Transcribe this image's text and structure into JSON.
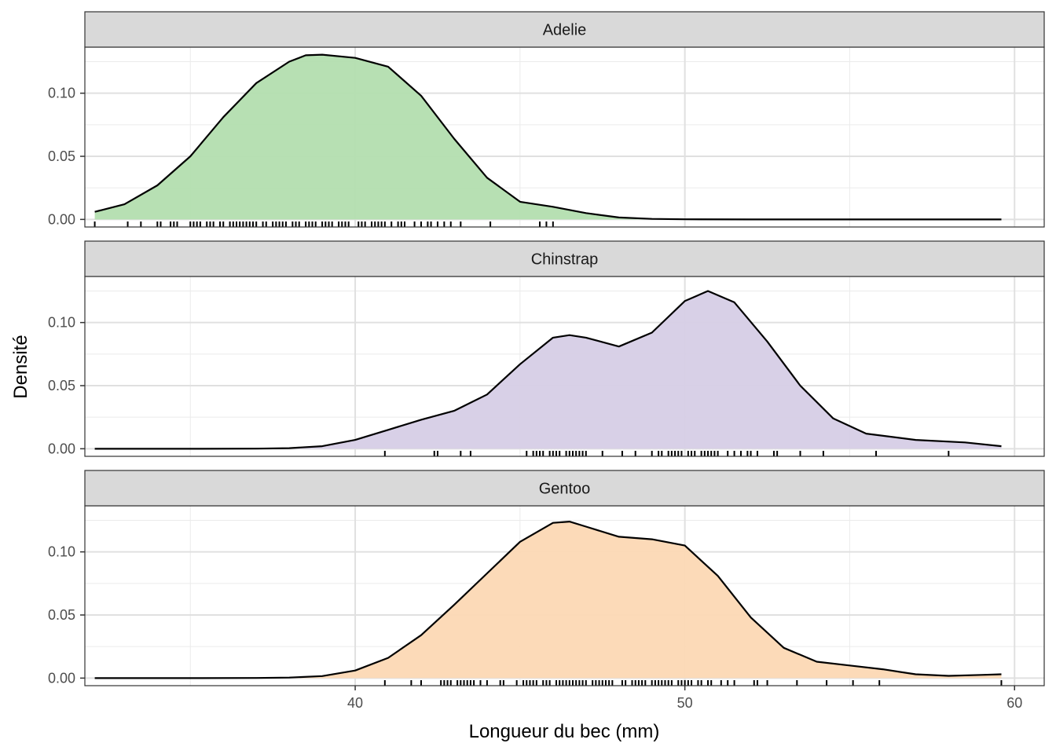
{
  "chart_data": {
    "type": "area",
    "xlabel": "Longueur du bec (mm)",
    "ylabel": "Densité",
    "xlim": [
      31.8,
      60.9
    ],
    "ylim": [
      -0.006,
      0.1365
    ],
    "x_ticks": [
      40,
      50,
      60
    ],
    "x_minor": [
      35,
      45,
      55
    ],
    "y_ticks": [
      0.0,
      0.05,
      0.1
    ],
    "y_tick_labels": [
      "0.00",
      "0.05",
      "0.10"
    ],
    "y_minor": [
      0.025,
      0.075,
      0.125
    ],
    "grid": true,
    "facets": [
      {
        "label": "Adelie",
        "fill": "#b3deaf",
        "curve": [
          [
            32.1,
            0.006
          ],
          [
            33.0,
            0.012
          ],
          [
            34.0,
            0.027
          ],
          [
            35.0,
            0.05
          ],
          [
            36.0,
            0.081
          ],
          [
            37.0,
            0.108
          ],
          [
            38.0,
            0.125
          ],
          [
            38.5,
            0.13
          ],
          [
            39.0,
            0.1305
          ],
          [
            40.0,
            0.128
          ],
          [
            41.0,
            0.121
          ],
          [
            42.0,
            0.098
          ],
          [
            43.0,
            0.064
          ],
          [
            44.0,
            0.033
          ],
          [
            45.0,
            0.014
          ],
          [
            46.0,
            0.01
          ],
          [
            47.0,
            0.005
          ],
          [
            48.0,
            0.0015
          ],
          [
            49.0,
            0.0004
          ],
          [
            50.0,
            0.0001
          ],
          [
            52.0,
            0.0
          ],
          [
            55.0,
            0.0
          ],
          [
            59.6,
            0.0
          ]
        ],
        "rug": [
          32.1,
          33.1,
          33.5,
          34.0,
          34.1,
          34.4,
          34.5,
          34.6,
          35.0,
          35.1,
          35.2,
          35.3,
          35.5,
          35.6,
          35.7,
          35.9,
          36.0,
          36.2,
          36.3,
          36.4,
          36.5,
          36.6,
          36.7,
          36.8,
          36.9,
          37.0,
          37.2,
          37.3,
          37.5,
          37.6,
          37.7,
          37.8,
          37.9,
          38.1,
          38.2,
          38.3,
          38.5,
          38.6,
          38.7,
          38.8,
          39.0,
          39.1,
          39.2,
          39.3,
          39.5,
          39.6,
          39.7,
          39.8,
          40.1,
          40.2,
          40.3,
          40.5,
          40.6,
          40.7,
          40.8,
          40.9,
          41.1,
          41.3,
          41.4,
          41.5,
          41.8,
          42.0,
          42.2,
          42.3,
          42.5,
          42.7,
          42.9,
          43.2,
          44.1,
          45.6,
          45.8,
          46.0
        ]
      },
      {
        "label": "Chinstrap",
        "fill": "#d6cde6",
        "curve": [
          [
            32.1,
            0.0
          ],
          [
            35.0,
            0.0
          ],
          [
            37.0,
            0.0001
          ],
          [
            38.0,
            0.0005
          ],
          [
            39.0,
            0.002
          ],
          [
            40.0,
            0.007
          ],
          [
            41.0,
            0.015
          ],
          [
            42.0,
            0.023
          ],
          [
            43.0,
            0.03
          ],
          [
            44.0,
            0.043
          ],
          [
            45.0,
            0.067
          ],
          [
            46.0,
            0.088
          ],
          [
            46.5,
            0.09
          ],
          [
            47.0,
            0.088
          ],
          [
            48.0,
            0.081
          ],
          [
            49.0,
            0.092
          ],
          [
            50.0,
            0.117
          ],
          [
            50.7,
            0.125
          ],
          [
            51.5,
            0.116
          ],
          [
            52.5,
            0.085
          ],
          [
            53.5,
            0.05
          ],
          [
            54.5,
            0.024
          ],
          [
            55.5,
            0.012
          ],
          [
            57.0,
            0.007
          ],
          [
            58.5,
            0.005
          ],
          [
            59.6,
            0.002
          ]
        ],
        "rug": [
          40.9,
          42.4,
          42.5,
          43.2,
          43.5,
          45.2,
          45.4,
          45.5,
          45.6,
          45.7,
          45.9,
          46.0,
          46.1,
          46.2,
          46.4,
          46.5,
          46.6,
          46.7,
          46.8,
          46.9,
          47.0,
          47.5,
          48.1,
          48.5,
          49.0,
          49.2,
          49.3,
          49.5,
          49.6,
          49.7,
          49.8,
          49.9,
          50.1,
          50.2,
          50.3,
          50.5,
          50.6,
          50.7,
          50.8,
          50.9,
          51.0,
          51.3,
          51.5,
          51.7,
          51.9,
          52.0,
          52.2,
          52.7,
          52.8,
          53.5,
          54.2,
          55.8,
          58.0
        ]
      },
      {
        "label": "Gentoo",
        "fill": "#fcd8b4",
        "curve": [
          [
            32.1,
            0.0
          ],
          [
            35.0,
            0.0
          ],
          [
            37.0,
            0.0001
          ],
          [
            38.0,
            0.0004
          ],
          [
            39.0,
            0.0016
          ],
          [
            40.0,
            0.006
          ],
          [
            41.0,
            0.016
          ],
          [
            42.0,
            0.034
          ],
          [
            43.0,
            0.058
          ],
          [
            44.0,
            0.083
          ],
          [
            45.0,
            0.108
          ],
          [
            46.0,
            0.123
          ],
          [
            46.5,
            0.124
          ],
          [
            47.0,
            0.12
          ],
          [
            48.0,
            0.112
          ],
          [
            49.0,
            0.11
          ],
          [
            50.0,
            0.105
          ],
          [
            51.0,
            0.081
          ],
          [
            52.0,
            0.048
          ],
          [
            53.0,
            0.024
          ],
          [
            54.0,
            0.013
          ],
          [
            55.0,
            0.01
          ],
          [
            56.0,
            0.007
          ],
          [
            57.0,
            0.003
          ],
          [
            58.0,
            0.0018
          ],
          [
            59.0,
            0.0025
          ],
          [
            59.6,
            0.003
          ]
        ],
        "rug": [
          40.9,
          41.7,
          42.0,
          42.6,
          42.7,
          42.8,
          42.9,
          43.1,
          43.2,
          43.3,
          43.4,
          43.5,
          43.6,
          43.8,
          44.0,
          44.4,
          44.5,
          44.9,
          45.1,
          45.2,
          45.3,
          45.4,
          45.5,
          45.7,
          45.8,
          45.9,
          46.1,
          46.2,
          46.3,
          46.4,
          46.5,
          46.6,
          46.7,
          46.8,
          46.9,
          47.0,
          47.2,
          47.3,
          47.4,
          47.5,
          47.6,
          47.7,
          47.8,
          48.1,
          48.2,
          48.4,
          48.5,
          48.6,
          48.7,
          48.8,
          49.0,
          49.1,
          49.2,
          49.3,
          49.4,
          49.5,
          49.6,
          49.8,
          49.9,
          50.0,
          50.1,
          50.2,
          50.4,
          50.5,
          50.7,
          50.8,
          51.1,
          51.3,
          51.5,
          52.1,
          52.2,
          52.5,
          53.4,
          54.3,
          55.1,
          55.9,
          59.6
        ]
      }
    ]
  }
}
